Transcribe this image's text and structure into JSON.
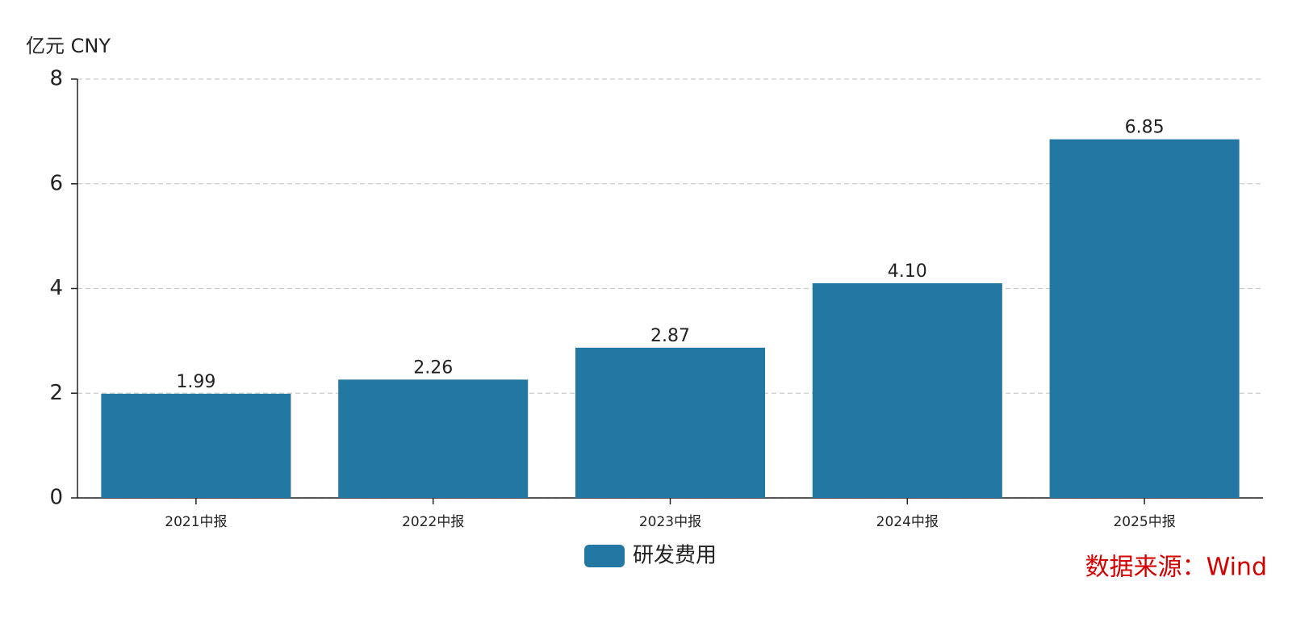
{
  "chart_data": {
    "type": "bar",
    "y_axis_unit": "亿元  CNY",
    "categories": [
      "2021中报",
      "2022中报",
      "2023中报",
      "2024中报",
      "2025中报"
    ],
    "series": [
      {
        "name": "研发费用",
        "color": "#2277a3",
        "values": [
          1.99,
          2.26,
          2.87,
          4.1,
          6.85
        ],
        "value_labels": [
          "1.99",
          "2.26",
          "2.87",
          "4.10",
          "6.85"
        ]
      }
    ],
    "ylim": [
      0,
      8
    ],
    "yticks": [
      0,
      2,
      4,
      6,
      8
    ],
    "grid": true,
    "source": "数据来源：Wind"
  }
}
